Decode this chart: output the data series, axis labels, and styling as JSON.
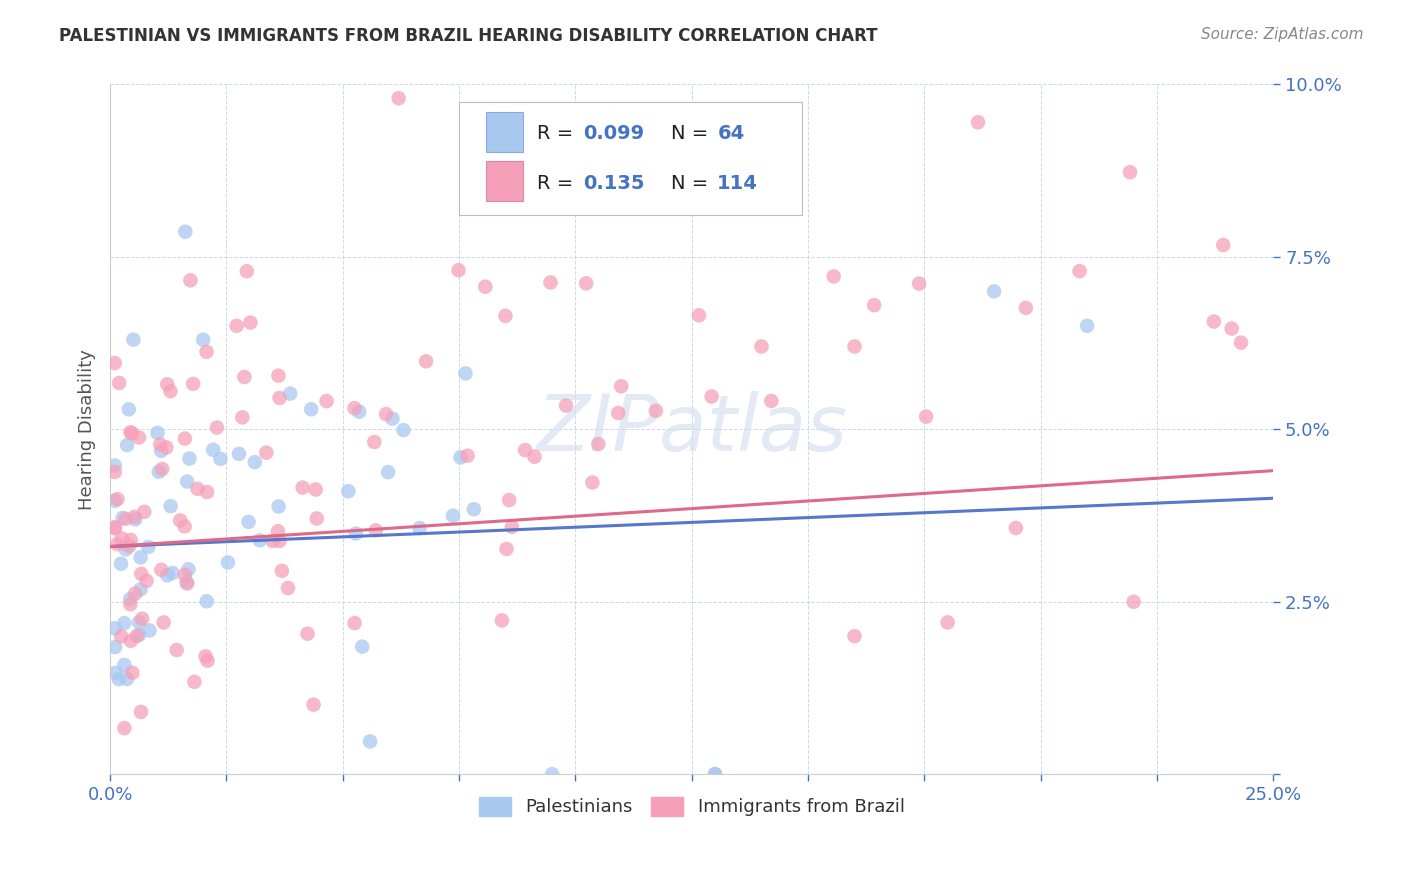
{
  "title": "PALESTINIAN VS IMMIGRANTS FROM BRAZIL HEARING DISABILITY CORRELATION CHART",
  "source": "Source: ZipAtlas.com",
  "ylabel": "Hearing Disability",
  "xlim": [
    0.0,
    0.25
  ],
  "ylim": [
    0.0,
    0.1
  ],
  "xticks": [
    0.0,
    0.025,
    0.05,
    0.075,
    0.1,
    0.125,
    0.15,
    0.175,
    0.2,
    0.225,
    0.25
  ],
  "yticks": [
    0.0,
    0.025,
    0.05,
    0.075,
    0.1
  ],
  "xticklabels_show": [
    "0.0%",
    "25.0%"
  ],
  "yticklabels": [
    "",
    "2.5%",
    "5.0%",
    "7.5%",
    "10.0%"
  ],
  "color_blue": "#a8c8f0",
  "color_pink": "#f5a0b8",
  "color_blue_line": "#5577cc",
  "color_pink_line": "#e06888",
  "color_blue_text": "#4472c4",
  "figsize": [
    14.06,
    8.92
  ],
  "dpi": 100
}
